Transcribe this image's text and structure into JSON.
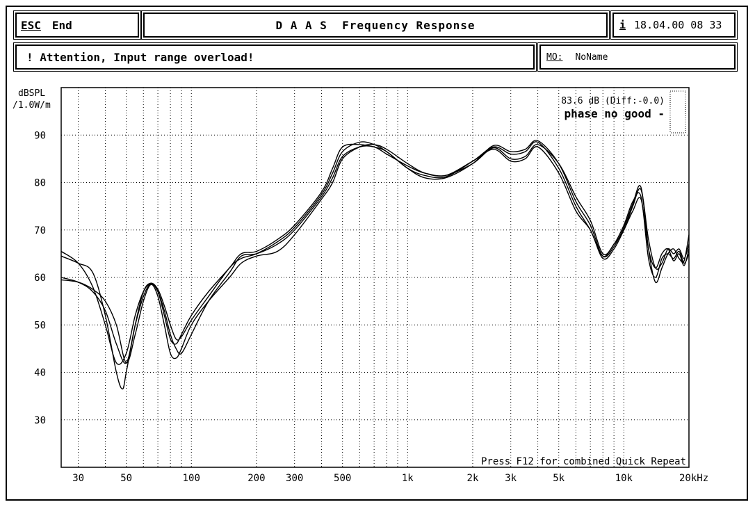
{
  "header": {
    "esc_key": "ESC",
    "esc_label": "End",
    "title": "D A A S  Frequency Response",
    "info_key": "i",
    "datetime": "18.04.00 08 33"
  },
  "alert": {
    "message": "! Attention, Input range overload!"
  },
  "model": {
    "key": "MO:",
    "value": "NoName"
  },
  "chart_data": {
    "type": "line",
    "ylabel_line1": "dBSPL",
    "ylabel_line2": "/1.0W/m",
    "xunit": "Hz",
    "xscale": "log",
    "xlim": [
      25,
      20000
    ],
    "ylim": [
      20,
      100
    ],
    "grid": true,
    "y_ticks": [
      30,
      40,
      50,
      60,
      70,
      80,
      90
    ],
    "x_tick_labels": [
      {
        "v": 30,
        "t": "30"
      },
      {
        "v": 50,
        "t": "50"
      },
      {
        "v": 100,
        "t": "100"
      },
      {
        "v": 200,
        "t": "200"
      },
      {
        "v": 300,
        "t": "300"
      },
      {
        "v": 500,
        "t": "500"
      },
      {
        "v": 1000,
        "t": "1k"
      },
      {
        "v": 2000,
        "t": "2k"
      },
      {
        "v": 3000,
        "t": "3k"
      },
      {
        "v": 5000,
        "t": "5k"
      },
      {
        "v": 10000,
        "t": "10k"
      },
      {
        "v": 20000,
        "t": "20kHz"
      }
    ],
    "annotation_level": "83.6 dB (Diff:-0.0)",
    "annotation_phase": "phase no good -",
    "footer_note": "Press F12 for combined Quick Repeat",
    "series": [
      {
        "values": [
          [
            25,
            65.5
          ],
          [
            30,
            63
          ],
          [
            35,
            58
          ],
          [
            40,
            50
          ],
          [
            45,
            42
          ],
          [
            50,
            44
          ],
          [
            55,
            52
          ],
          [
            60,
            57
          ],
          [
            65,
            58.7
          ],
          [
            70,
            57
          ],
          [
            75,
            52
          ],
          [
            80,
            47
          ],
          [
            85,
            46
          ],
          [
            90,
            48
          ],
          [
            100,
            52
          ],
          [
            120,
            57
          ],
          [
            150,
            62
          ],
          [
            170,
            65
          ],
          [
            200,
            65.5
          ],
          [
            250,
            68
          ],
          [
            300,
            71
          ],
          [
            400,
            78
          ],
          [
            450,
            83
          ],
          [
            500,
            87.5
          ],
          [
            600,
            88
          ],
          [
            700,
            87.5
          ],
          [
            800,
            86.5
          ],
          [
            1000,
            83
          ],
          [
            1200,
            81.5
          ],
          [
            1500,
            81.2
          ],
          [
            2000,
            84.5
          ],
          [
            2500,
            87.5
          ],
          [
            3000,
            86
          ],
          [
            3500,
            86.5
          ],
          [
            4000,
            88.5
          ],
          [
            5000,
            83
          ],
          [
            6000,
            75
          ],
          [
            7000,
            70
          ],
          [
            8000,
            64.5
          ],
          [
            9000,
            67
          ],
          [
            10000,
            70
          ],
          [
            11000,
            75
          ],
          [
            12000,
            78.5
          ],
          [
            13000,
            68
          ],
          [
            14000,
            62
          ],
          [
            15000,
            63
          ],
          [
            16000,
            66
          ],
          [
            17000,
            65
          ],
          [
            18000,
            66
          ],
          [
            19000,
            64
          ],
          [
            20000,
            67
          ]
        ]
      },
      {
        "values": [
          [
            25,
            60
          ],
          [
            30,
            59
          ],
          [
            35,
            57
          ],
          [
            40,
            53
          ],
          [
            45,
            46
          ],
          [
            50,
            42
          ],
          [
            55,
            50
          ],
          [
            60,
            56
          ],
          [
            65,
            58.7
          ],
          [
            70,
            57
          ],
          [
            75,
            53
          ],
          [
            80,
            48
          ],
          [
            85,
            45
          ],
          [
            90,
            44
          ],
          [
            100,
            48
          ],
          [
            120,
            55
          ],
          [
            150,
            61
          ],
          [
            170,
            64.5
          ],
          [
            200,
            65
          ],
          [
            250,
            67
          ],
          [
            300,
            70
          ],
          [
            400,
            77
          ],
          [
            450,
            81
          ],
          [
            500,
            85.5
          ],
          [
            600,
            87.5
          ],
          [
            700,
            87.5
          ],
          [
            800,
            86
          ],
          [
            1000,
            83.5
          ],
          [
            1200,
            82
          ],
          [
            1500,
            81.5
          ],
          [
            2000,
            84
          ],
          [
            2500,
            87.3
          ],
          [
            3000,
            85
          ],
          [
            3500,
            85.5
          ],
          [
            4000,
            88
          ],
          [
            5000,
            84
          ],
          [
            6000,
            77
          ],
          [
            7000,
            72
          ],
          [
            8000,
            65
          ],
          [
            9000,
            67
          ],
          [
            10000,
            71
          ],
          [
            11000,
            76
          ],
          [
            12000,
            77
          ],
          [
            13000,
            64
          ],
          [
            14000,
            60
          ],
          [
            15000,
            64
          ],
          [
            16000,
            65
          ],
          [
            17000,
            64
          ],
          [
            18000,
            65.5
          ],
          [
            19000,
            63
          ],
          [
            20000,
            65
          ]
        ]
      },
      {
        "values": [
          [
            25,
            59.5
          ],
          [
            30,
            59
          ],
          [
            35,
            57.5
          ],
          [
            40,
            55
          ],
          [
            45,
            50
          ],
          [
            50,
            42
          ],
          [
            55,
            48
          ],
          [
            60,
            55
          ],
          [
            65,
            58.5
          ],
          [
            70,
            56
          ],
          [
            75,
            50
          ],
          [
            80,
            44
          ],
          [
            85,
            43
          ],
          [
            90,
            45
          ],
          [
            100,
            50
          ],
          [
            120,
            55
          ],
          [
            150,
            60
          ],
          [
            170,
            63
          ],
          [
            200,
            64.5
          ],
          [
            250,
            65.5
          ],
          [
            300,
            69
          ],
          [
            400,
            76.5
          ],
          [
            450,
            80
          ],
          [
            500,
            85
          ],
          [
            600,
            87.5
          ],
          [
            700,
            88
          ],
          [
            800,
            87
          ],
          [
            1000,
            84
          ],
          [
            1200,
            82
          ],
          [
            1500,
            81.5
          ],
          [
            2000,
            84.5
          ],
          [
            2500,
            87
          ],
          [
            3000,
            84.5
          ],
          [
            3500,
            85
          ],
          [
            4000,
            87.5
          ],
          [
            5000,
            82
          ],
          [
            6000,
            74
          ],
          [
            7000,
            70
          ],
          [
            8000,
            64
          ],
          [
            9000,
            66
          ],
          [
            10000,
            70
          ],
          [
            11000,
            74
          ],
          [
            12000,
            76.5
          ],
          [
            13000,
            66
          ],
          [
            14000,
            62
          ],
          [
            15000,
            65
          ],
          [
            16000,
            66
          ],
          [
            17000,
            63.5
          ],
          [
            18000,
            65
          ],
          [
            19000,
            62.5
          ],
          [
            20000,
            66
          ]
        ]
      },
      {
        "values": [
          [
            25,
            64.5
          ],
          [
            30,
            63
          ],
          [
            35,
            61
          ],
          [
            40,
            52
          ],
          [
            45,
            40
          ],
          [
            48,
            36.5
          ],
          [
            50,
            40
          ],
          [
            55,
            50
          ],
          [
            60,
            57
          ],
          [
            65,
            58.8
          ],
          [
            70,
            57.5
          ],
          [
            75,
            54
          ],
          [
            80,
            50
          ],
          [
            85,
            47
          ],
          [
            90,
            47.5
          ],
          [
            100,
            51
          ],
          [
            120,
            56
          ],
          [
            150,
            62
          ],
          [
            170,
            64
          ],
          [
            200,
            65
          ],
          [
            250,
            67.5
          ],
          [
            300,
            70.5
          ],
          [
            400,
            77.5
          ],
          [
            450,
            82
          ],
          [
            500,
            86.5
          ],
          [
            600,
            88.5
          ],
          [
            700,
            88
          ],
          [
            800,
            86.5
          ],
          [
            1000,
            83
          ],
          [
            1200,
            81
          ],
          [
            1500,
            81
          ],
          [
            2000,
            84
          ],
          [
            2500,
            87.8
          ],
          [
            3000,
            86.5
          ],
          [
            3500,
            87
          ],
          [
            4000,
            88.8
          ],
          [
            5000,
            84
          ],
          [
            6000,
            76
          ],
          [
            7000,
            71
          ],
          [
            8000,
            64.5
          ],
          [
            9000,
            66.5
          ],
          [
            10000,
            70.5
          ],
          [
            11000,
            75.5
          ],
          [
            12000,
            79
          ],
          [
            13000,
            66
          ],
          [
            14000,
            59
          ],
          [
            15000,
            62
          ],
          [
            16000,
            65
          ],
          [
            17000,
            66
          ],
          [
            18000,
            64
          ],
          [
            19000,
            63.5
          ],
          [
            20000,
            69
          ]
        ]
      }
    ]
  }
}
